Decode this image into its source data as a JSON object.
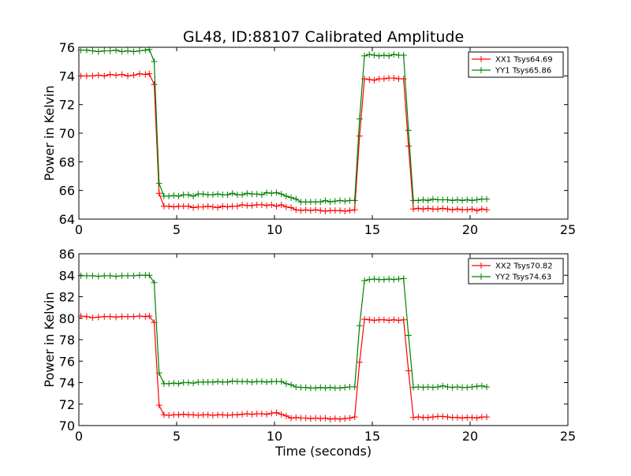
{
  "title": "GL48, ID:88107 Calibrated Amplitude",
  "chart_data": [
    {
      "type": "line",
      "title": "GL48, ID:88107 Calibrated Amplitude",
      "xlabel": "",
      "ylabel": "Power in Kelvin",
      "xlim": [
        0,
        25
      ],
      "ylim": [
        64,
        76
      ],
      "xticks": [
        "0",
        "5",
        "10",
        "15",
        "20",
        "25"
      ],
      "yticks": [
        "64",
        "66",
        "68",
        "70",
        "72",
        "74",
        "76"
      ],
      "grid": false,
      "legend_position": "top-right",
      "x": [
        0.1,
        0.4,
        0.7,
        1.0,
        1.3,
        1.6,
        1.9,
        2.2,
        2.5,
        2.8,
        3.1,
        3.4,
        3.6,
        3.85,
        4.1,
        4.35,
        4.6,
        4.85,
        5.1,
        5.35,
        5.6,
        5.85,
        6.1,
        6.35,
        6.6,
        6.85,
        7.1,
        7.35,
        7.6,
        7.85,
        8.1,
        8.35,
        8.6,
        8.85,
        9.1,
        9.35,
        9.6,
        9.85,
        10.1,
        10.35,
        10.6,
        10.85,
        11.1,
        11.35,
        11.6,
        11.85,
        12.1,
        12.35,
        12.6,
        12.85,
        13.1,
        13.35,
        13.6,
        13.85,
        14.1,
        14.35,
        14.6,
        14.85,
        15.1,
        15.35,
        15.6,
        15.85,
        16.1,
        16.35,
        16.6,
        16.85,
        17.1,
        17.35,
        17.6,
        17.85,
        18.1,
        18.35,
        18.6,
        18.85,
        19.1,
        19.35,
        19.6,
        19.85,
        20.1,
        20.35,
        20.6,
        20.85
      ],
      "series": [
        {
          "name": "XX1 Tsys64.69",
          "color": "#ff0000",
          "values": [
            74.0,
            74.0,
            74.0,
            74.05,
            74.0,
            74.1,
            74.05,
            74.1,
            74.0,
            74.05,
            74.15,
            74.1,
            74.15,
            73.4,
            65.8,
            64.9,
            64.9,
            64.85,
            64.9,
            64.9,
            64.9,
            64.8,
            64.85,
            64.85,
            64.9,
            64.85,
            64.8,
            64.9,
            64.85,
            64.9,
            64.9,
            65.0,
            64.95,
            64.95,
            65.0,
            65.0,
            64.95,
            65.0,
            64.9,
            65.0,
            64.85,
            64.8,
            64.65,
            64.6,
            64.65,
            64.6,
            64.65,
            64.6,
            64.55,
            64.6,
            64.6,
            64.6,
            64.55,
            64.6,
            64.65,
            69.8,
            73.8,
            73.75,
            73.7,
            73.8,
            73.8,
            73.85,
            73.85,
            73.8,
            73.8,
            69.1,
            64.7,
            64.75,
            64.7,
            64.75,
            64.7,
            64.7,
            64.75,
            64.7,
            64.65,
            64.7,
            64.65,
            64.65,
            64.7,
            64.6,
            64.7,
            64.65
          ]
        },
        {
          "name": "YY1 Tsys65.86",
          "color": "#008000",
          "values": [
            75.8,
            75.8,
            75.75,
            75.7,
            75.75,
            75.75,
            75.8,
            75.7,
            75.75,
            75.7,
            75.75,
            75.8,
            75.85,
            75.0,
            66.5,
            65.6,
            65.6,
            65.65,
            65.6,
            65.7,
            65.7,
            65.6,
            65.75,
            65.75,
            65.7,
            65.7,
            65.75,
            65.7,
            65.7,
            65.8,
            65.7,
            65.7,
            65.8,
            65.75,
            65.75,
            65.7,
            65.85,
            65.8,
            65.85,
            65.75,
            65.6,
            65.5,
            65.4,
            65.2,
            65.2,
            65.2,
            65.2,
            65.2,
            65.3,
            65.2,
            65.25,
            65.3,
            65.25,
            65.3,
            65.3,
            71.0,
            75.4,
            75.5,
            75.45,
            75.4,
            75.45,
            75.4,
            75.5,
            75.45,
            75.45,
            70.2,
            65.3,
            65.3,
            65.35,
            65.3,
            65.4,
            65.35,
            65.35,
            65.35,
            65.3,
            65.35,
            65.3,
            65.35,
            65.3,
            65.35,
            65.4,
            65.4
          ]
        }
      ]
    },
    {
      "type": "line",
      "title": "",
      "xlabel": "Time (seconds)",
      "ylabel": "Power in Kelvin",
      "xlim": [
        0,
        25
      ],
      "ylim": [
        70,
        86
      ],
      "xticks": [
        "0",
        "5",
        "10",
        "15",
        "20",
        "25"
      ],
      "yticks": [
        "70",
        "72",
        "74",
        "76",
        "78",
        "80",
        "82",
        "84",
        "86"
      ],
      "grid": false,
      "legend_position": "top-right",
      "x": [
        0.1,
        0.4,
        0.7,
        1.0,
        1.3,
        1.6,
        1.9,
        2.2,
        2.5,
        2.8,
        3.1,
        3.4,
        3.6,
        3.85,
        4.1,
        4.35,
        4.6,
        4.85,
        5.1,
        5.35,
        5.6,
        5.85,
        6.1,
        6.35,
        6.6,
        6.85,
        7.1,
        7.35,
        7.6,
        7.85,
        8.1,
        8.35,
        8.6,
        8.85,
        9.1,
        9.35,
        9.6,
        9.85,
        10.1,
        10.35,
        10.6,
        10.85,
        11.1,
        11.35,
        11.6,
        11.85,
        12.1,
        12.35,
        12.6,
        12.85,
        13.1,
        13.35,
        13.6,
        13.85,
        14.1,
        14.35,
        14.6,
        14.85,
        15.1,
        15.35,
        15.6,
        15.85,
        16.1,
        16.35,
        16.6,
        16.85,
        17.1,
        17.35,
        17.6,
        17.85,
        18.1,
        18.35,
        18.6,
        18.85,
        19.1,
        19.35,
        19.6,
        19.85,
        20.1,
        20.35,
        20.6,
        20.85
      ],
      "series": [
        {
          "name": "XX2 Tsys70.82",
          "color": "#ff0000",
          "values": [
            80.2,
            80.15,
            80.05,
            80.1,
            80.15,
            80.15,
            80.1,
            80.15,
            80.15,
            80.15,
            80.2,
            80.15,
            80.2,
            79.6,
            71.9,
            71.0,
            70.95,
            71.0,
            71.0,
            71.05,
            71.0,
            71.0,
            70.95,
            71.0,
            71.0,
            70.95,
            71.0,
            71.0,
            70.95,
            71.0,
            71.0,
            71.05,
            71.1,
            71.05,
            71.1,
            71.1,
            71.05,
            71.15,
            71.2,
            71.05,
            70.9,
            70.7,
            70.75,
            70.7,
            70.7,
            70.65,
            70.7,
            70.65,
            70.7,
            70.6,
            70.65,
            70.6,
            70.65,
            70.7,
            70.8,
            75.9,
            79.9,
            79.85,
            79.8,
            79.85,
            79.85,
            79.8,
            79.85,
            79.8,
            79.85,
            75.1,
            70.75,
            70.8,
            70.75,
            70.75,
            70.8,
            70.85,
            70.85,
            70.8,
            70.75,
            70.75,
            70.7,
            70.75,
            70.75,
            70.7,
            70.8,
            70.8
          ]
        },
        {
          "name": "YY2 Tsys74.63",
          "color": "#008000",
          "values": [
            83.95,
            83.95,
            83.95,
            83.9,
            83.95,
            83.95,
            83.9,
            83.95,
            83.95,
            83.95,
            84.0,
            84.0,
            84.0,
            83.3,
            74.9,
            73.9,
            73.9,
            73.95,
            73.9,
            74.0,
            74.0,
            73.95,
            74.05,
            74.05,
            74.05,
            74.05,
            74.1,
            74.05,
            74.05,
            74.15,
            74.1,
            74.1,
            74.1,
            74.05,
            74.1,
            74.1,
            74.05,
            74.1,
            74.1,
            74.1,
            73.9,
            73.8,
            73.6,
            73.55,
            73.55,
            73.5,
            73.5,
            73.55,
            73.5,
            73.55,
            73.5,
            73.5,
            73.55,
            73.6,
            73.6,
            79.3,
            83.5,
            83.6,
            83.65,
            83.6,
            83.6,
            83.65,
            83.6,
            83.65,
            83.7,
            78.4,
            73.55,
            73.6,
            73.55,
            73.6,
            73.55,
            73.6,
            73.7,
            73.6,
            73.55,
            73.6,
            73.55,
            73.55,
            73.6,
            73.65,
            73.7,
            73.6
          ]
        }
      ]
    }
  ]
}
